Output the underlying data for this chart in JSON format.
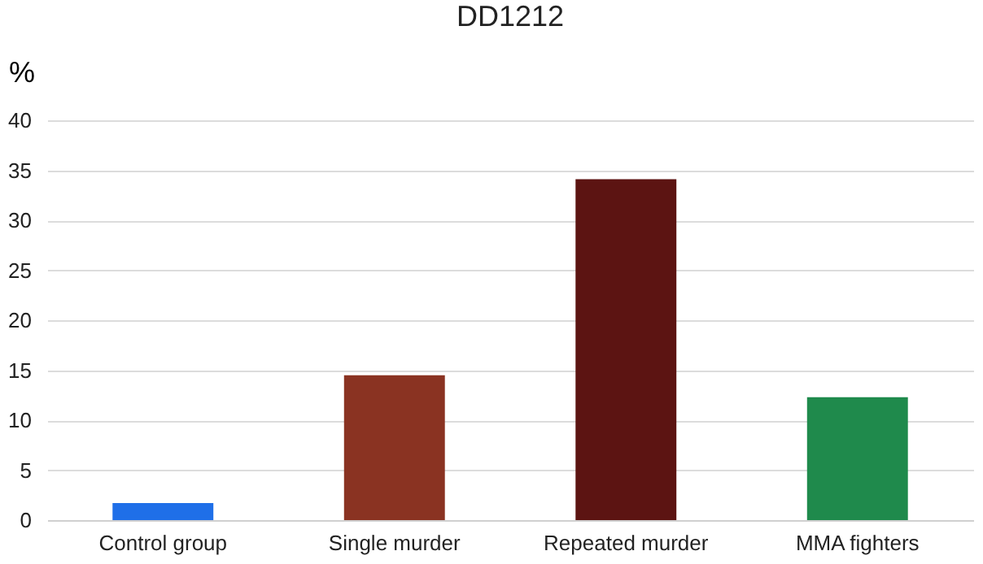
{
  "chart_data": {
    "type": "bar",
    "title": "DD1212",
    "ylabel": "%",
    "categories": [
      "Control group",
      "Single murder",
      "Repeated murder",
      "MMA fighters"
    ],
    "values": [
      1.7,
      14.5,
      34.1,
      12.3
    ],
    "colors": [
      "#1f6fe8",
      "#8a3322",
      "#5c1412",
      "#1f8a4c"
    ],
    "ylim": [
      0,
      40
    ],
    "yticks": [
      0,
      5,
      10,
      15,
      20,
      25,
      30,
      35,
      40
    ],
    "grid": "y"
  }
}
